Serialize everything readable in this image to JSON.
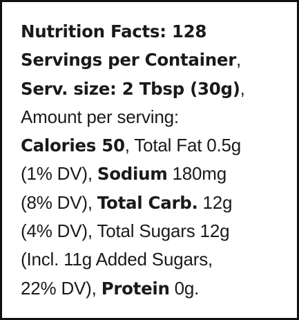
{
  "label": {
    "line1": {
      "heading": "Nutrition Facts: 128"
    },
    "line2": {
      "servings_per_container": "Servings per Container",
      "comma": ","
    },
    "line3": {
      "serving_size": "Serv. size: 2 Tbsp (30g)",
      "comma": ","
    },
    "line4": {
      "amount_per_serving": "Amount per serving:"
    },
    "line5": {
      "calories": "Calories 50",
      "total_fat": ", Total Fat 0.5g"
    },
    "line6": {
      "fat_dv": "(1% DV), ",
      "sodium_label": "Sodium",
      "sodium_value": " 180mg"
    },
    "line7": {
      "sodium_dv": "(8% DV), ",
      "carb_label": "Total Carb.",
      "carb_value": " 12g"
    },
    "line8": {
      "carb_dv_and_sugars": "(4% DV), Total Sugars 12g"
    },
    "line9": {
      "added_sugars": "(Incl. 11g Added Sugars,"
    },
    "line10": {
      "added_sugars_dv": "22% DV), ",
      "protein_label": "Protein",
      "protein_value": " 0g."
    }
  }
}
